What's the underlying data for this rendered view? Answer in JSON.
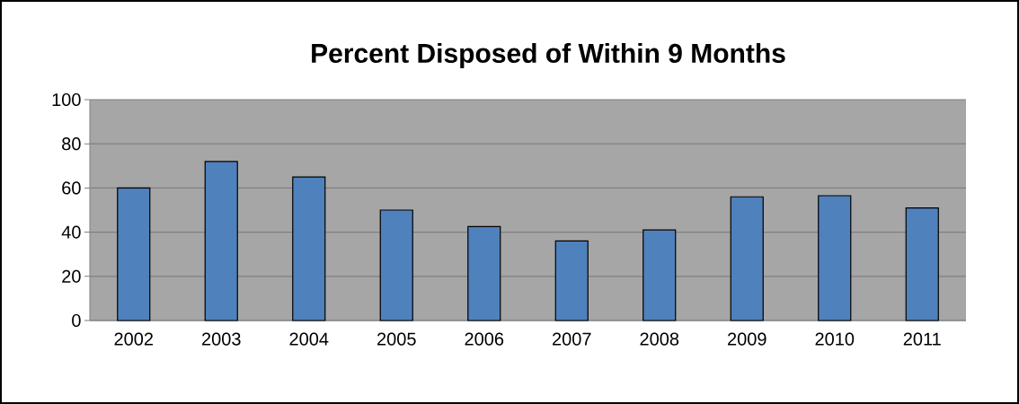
{
  "chart_data": {
    "type": "bar",
    "title": "Percent Disposed of Within 9 Months",
    "categories": [
      "2002",
      "2003",
      "2004",
      "2005",
      "2006",
      "2007",
      "2008",
      "2009",
      "2010",
      "2011"
    ],
    "values": [
      60,
      72,
      65,
      50,
      42.5,
      36,
      41,
      56,
      56.5,
      51
    ],
    "color": "#4f81bd",
    "ylim": [
      0,
      100
    ],
    "yticks": [
      0,
      20,
      40,
      60,
      80,
      100
    ],
    "grid": "y"
  }
}
